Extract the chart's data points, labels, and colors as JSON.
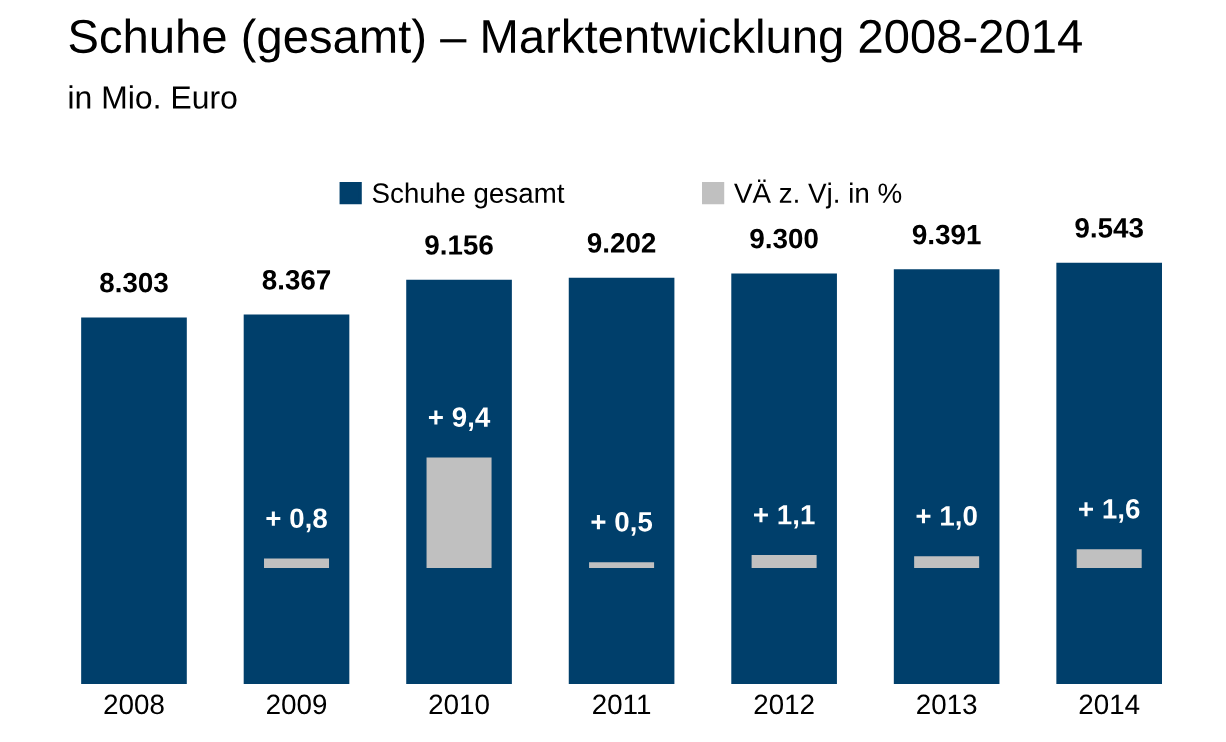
{
  "chart_data": {
    "type": "bar",
    "title": "Schuhe (gesamt) – Marktentwicklung 2008-2014",
    "subtitle": "in Mio. Euro",
    "categories": [
      "2008",
      "2009",
      "2010",
      "2011",
      "2012",
      "2013",
      "2014"
    ],
    "series": [
      {
        "name": "Schuhe gesamt",
        "color": "#003f6b",
        "values": [
          8303,
          8367,
          9156,
          9202,
          9300,
          9391,
          9543
        ],
        "value_labels": [
          "8.303",
          "8.367",
          "9.156",
          "9.202",
          "9.300",
          "9.391",
          "9.543"
        ]
      },
      {
        "name": "VÄ z. Vj. in %",
        "color": "#c0c0c0",
        "axis": "y2",
        "values": [
          null,
          0.8,
          9.4,
          0.5,
          1.1,
          1.0,
          1.6
        ],
        "value_labels": [
          null,
          "+ 0,8",
          "+ 9,4",
          "+ 0,5",
          "+ 1,1",
          "+ 1,0",
          "+ 1,6"
        ]
      }
    ],
    "tick_labels": "x",
    "grid": false,
    "legend": "top"
  }
}
